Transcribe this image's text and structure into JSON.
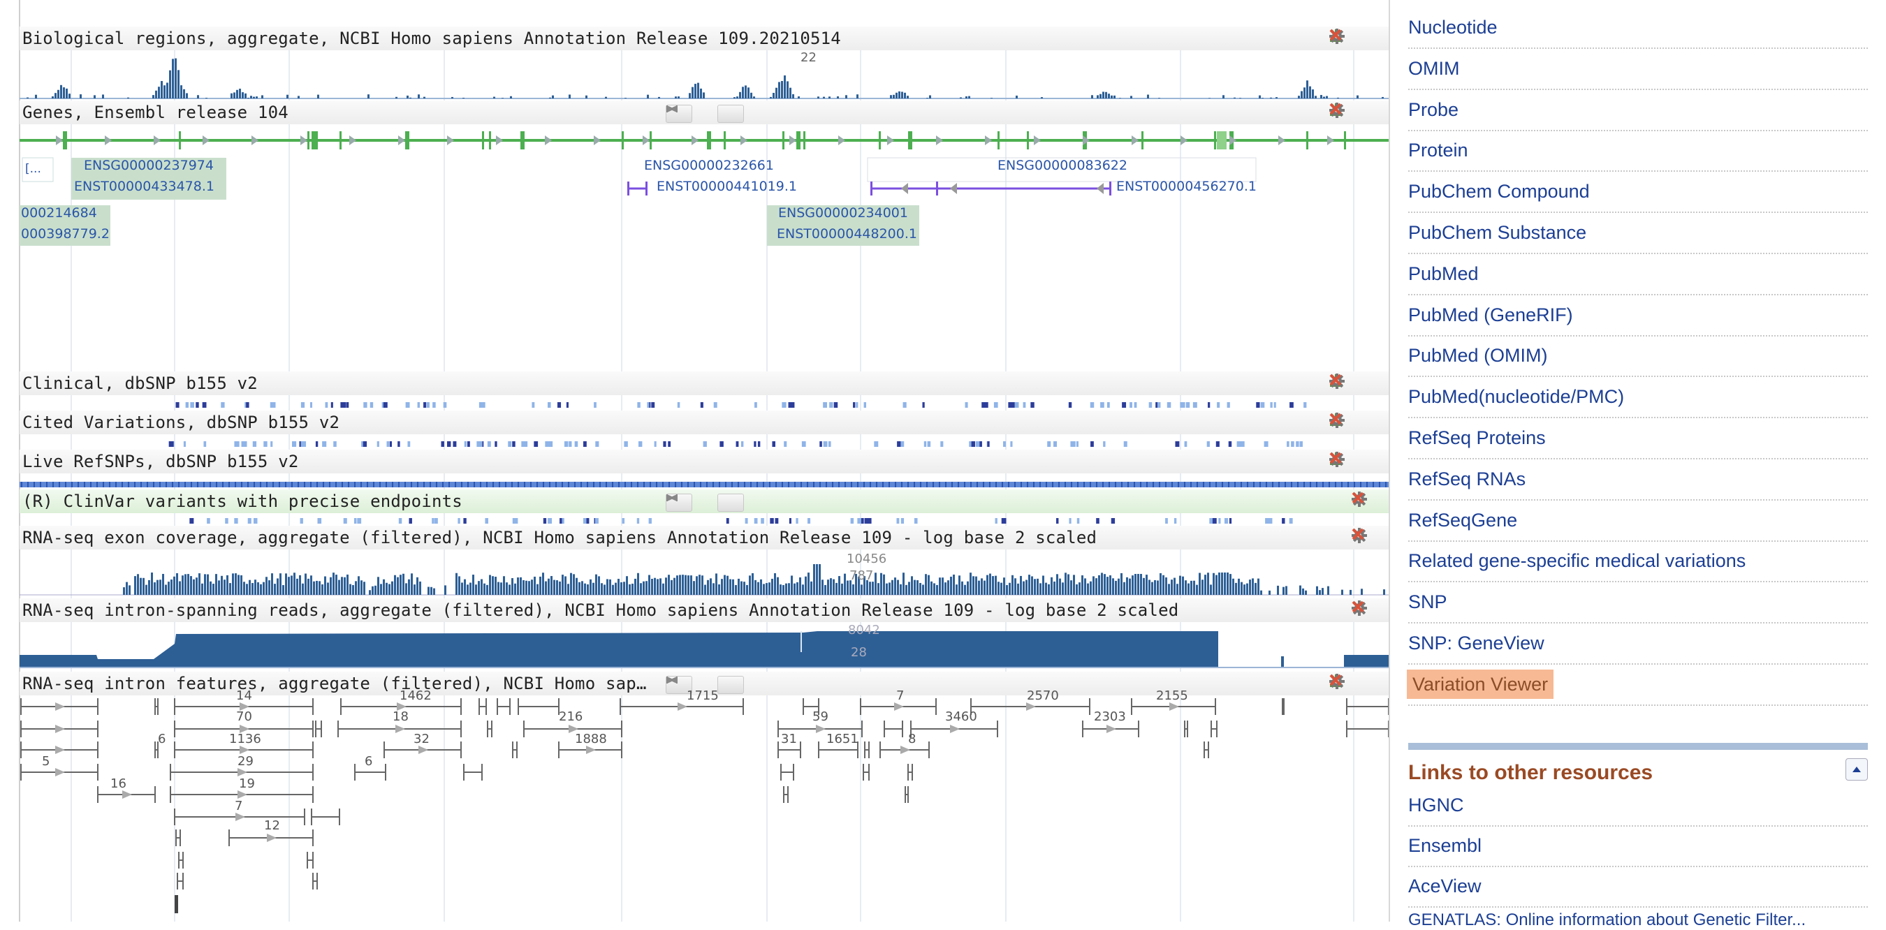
{
  "tracks": {
    "bio_regions": {
      "title": "Biological regions, aggregate, NCBI Homo sapiens Annotation Release 109.20210514",
      "peak_label": "22"
    },
    "genes": {
      "title": "Genes, Ensembl release 104",
      "features": [
        {
          "gene": "ENSG00000237974",
          "transcript": "ENST00000433478.1"
        },
        {
          "gene": "ENSG00000232661",
          "transcript": "ENST00000441019.1"
        },
        {
          "gene": "ENSG00000083622",
          "transcript": "ENST00000456270.1"
        },
        {
          "gene": "000214684",
          "transcript": "000398779.2"
        },
        {
          "gene": "ENSG00000234001",
          "transcript": "ENST00000448200.1"
        }
      ],
      "left_stub": "[..."
    },
    "clinical": {
      "title": "Clinical, dbSNP b155 v2"
    },
    "cited": {
      "title": "Cited Variations, dbSNP b155 v2"
    },
    "live": {
      "title": "Live RefSNPs, dbSNP b155 v2"
    },
    "clinvar": {
      "title": "(R) ClinVar variants with precise endpoints"
    },
    "rnaseq_exon": {
      "title": "RNA-seq exon coverage, aggregate (filtered), NCBI Homo sapiens Annotation Release 109 - log base 2 scaled",
      "peak_label": "10456",
      "sub_label": "787"
    },
    "rnaseq_intron": {
      "title": "RNA-seq intron-spanning reads, aggregate (filtered), NCBI Homo sapiens Annotation Release 109 - log base 2 scaled",
      "peak_label": "8042",
      "sub_label": "28"
    },
    "intron_features": {
      "title": "RNA-seq intron features, aggregate (filtered), NCBI Homo sap…",
      "counts": [
        "14",
        "1462",
        "1715",
        "7",
        "2570",
        "2155",
        "70",
        "18",
        "216",
        "59",
        "3460",
        "2303",
        "6",
        "1136",
        "32",
        "1888",
        "31",
        "1651",
        "8",
        "5",
        "29",
        "6",
        "16",
        "19",
        "7",
        "12"
      ]
    }
  },
  "sidebar": {
    "links": [
      "Nucleotide",
      "OMIM",
      "Probe",
      "Protein",
      "PubChem Compound",
      "PubChem Substance",
      "PubMed",
      "PubMed (GeneRIF)",
      "PubMed (OMIM)",
      "PubMed(nucleotide/PMC)",
      "RefSeq Proteins",
      "RefSeq RNAs",
      "RefSeqGene",
      "Related gene-specific medical variations",
      "SNP",
      "SNP: GeneView",
      "Variation Viewer"
    ],
    "active_link": "Variation Viewer",
    "resources_title": "Links to other resources",
    "resources": [
      "HGNC",
      "Ensembl",
      "AceView"
    ],
    "cutoff_text": "GENATLAS: Online information about Genetic Filter..."
  },
  "colors": {
    "histogram": "#2d5f95",
    "gene_line": "#4caf50",
    "transcript": "#7b4fe0",
    "link": "#1c3f94",
    "active_highlight": "#f7b994",
    "resources_heading": "#9a4a24"
  },
  "icons": {
    "download": "download-icon",
    "settings": "gear-icon",
    "close": "close-icon",
    "prev": "prev-icon",
    "next": "next-icon"
  }
}
